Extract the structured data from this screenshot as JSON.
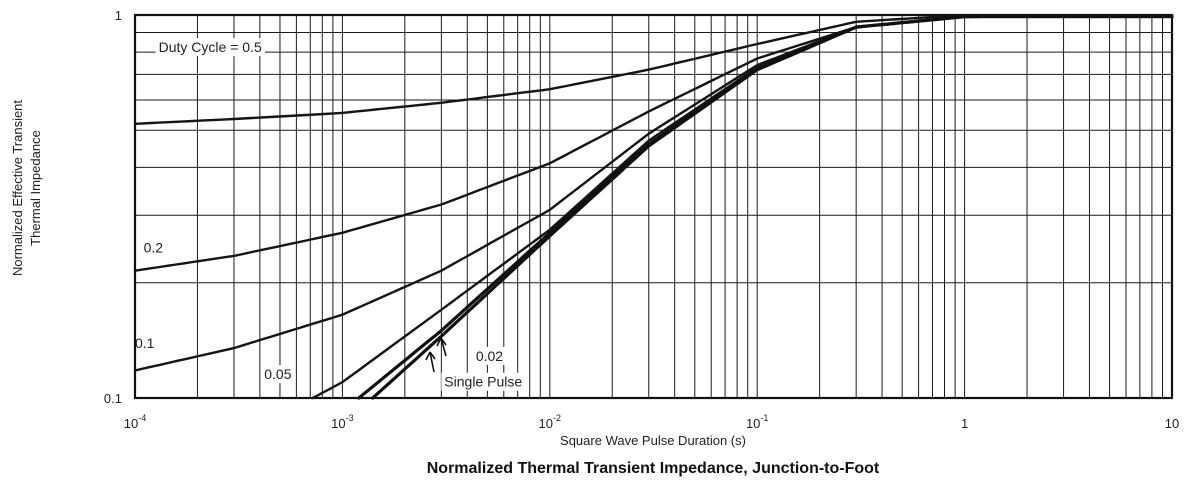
{
  "chart_data": {
    "type": "line",
    "title": "Normalized Thermal Transient Impedance, Junction-to-Foot",
    "xlabel": "Square Wave Pulse Duration (s)",
    "ylabel": [
      "Normalized Effective Transient",
      "Thermal Impedance"
    ],
    "x_scale": "log",
    "y_scale": "log",
    "xlim": [
      0.0001,
      10
    ],
    "ylim": [
      0.1,
      1
    ],
    "grid": true,
    "x_ticks": [
      {
        "base": "10",
        "exp": "-4"
      },
      {
        "base": "10",
        "exp": "-3"
      },
      {
        "base": "10",
        "exp": "-2"
      },
      {
        "base": "10",
        "exp": "-1"
      },
      {
        "base": "1",
        "exp": ""
      },
      {
        "base": "10",
        "exp": ""
      }
    ],
    "y_ticks": [
      "0.1",
      "1"
    ],
    "series": [
      {
        "name": "Duty Cycle = 0.5",
        "x": [
          0.0001,
          0.0003,
          0.001,
          0.003,
          0.01,
          0.03,
          0.1,
          0.3,
          1,
          10
        ],
        "y": [
          0.52,
          0.535,
          0.555,
          0.59,
          0.64,
          0.72,
          0.84,
          0.96,
          1.0,
          1.0
        ]
      },
      {
        "name": "0.2",
        "x": [
          0.0001,
          0.0003,
          0.001,
          0.003,
          0.01,
          0.03,
          0.1,
          0.3,
          1,
          10
        ],
        "y": [
          0.215,
          0.235,
          0.27,
          0.32,
          0.41,
          0.56,
          0.77,
          0.93,
          0.99,
          1.0
        ]
      },
      {
        "name": "0.1",
        "x": [
          0.0001,
          0.0003,
          0.001,
          0.003,
          0.01,
          0.03,
          0.1,
          0.3,
          1,
          10
        ],
        "y": [
          0.118,
          0.135,
          0.165,
          0.215,
          0.31,
          0.49,
          0.74,
          0.93,
          0.99,
          1.0
        ]
      },
      {
        "name": "0.05",
        "x": [
          0.00072,
          0.001,
          0.003,
          0.01,
          0.03,
          0.1,
          0.3,
          1,
          10
        ],
        "y": [
          0.1,
          0.11,
          0.17,
          0.275,
          0.47,
          0.73,
          0.93,
          0.99,
          1.0
        ]
      },
      {
        "name": "0.02",
        "x": [
          0.0012,
          0.003,
          0.01,
          0.03,
          0.1,
          0.3,
          1,
          10
        ],
        "y": [
          0.1,
          0.15,
          0.27,
          0.46,
          0.72,
          0.93,
          0.99,
          1.0
        ]
      },
      {
        "name": "Single Pulse",
        "x": [
          0.0014,
          0.003,
          0.01,
          0.03,
          0.1,
          0.3,
          1,
          10
        ],
        "y": [
          0.1,
          0.145,
          0.265,
          0.455,
          0.72,
          0.93,
          0.99,
          1.0
        ]
      }
    ],
    "annotations": [
      {
        "text": "Duty Cycle = 0.5",
        "x": 0.00013,
        "y": 0.8
      },
      {
        "text": "0.2",
        "x": 0.00011,
        "y": 0.24
      },
      {
        "text": "0.1",
        "x": 0.0001,
        "y": 0.135
      },
      {
        "text": "0.05",
        "x": 0.00042,
        "y": 0.112
      },
      {
        "text": "0.02",
        "x": 0.0044,
        "y": 0.125
      },
      {
        "text": "Single Pulse",
        "x": 0.0031,
        "y": 0.107
      }
    ]
  }
}
